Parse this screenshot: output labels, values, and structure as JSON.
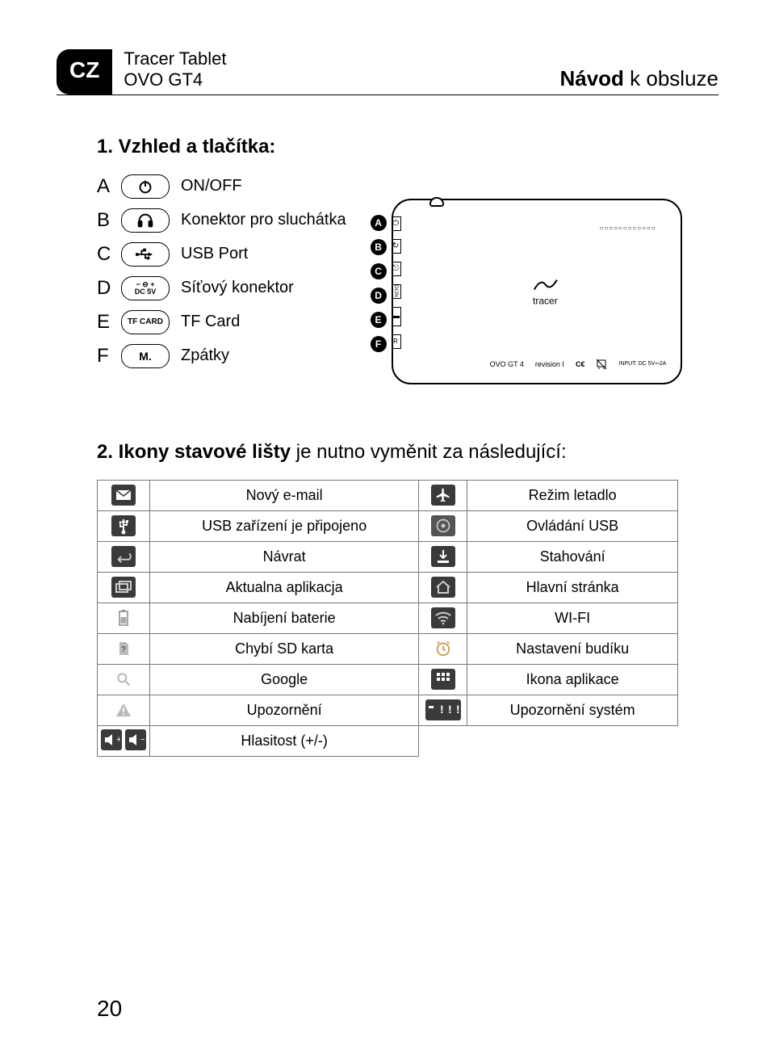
{
  "header": {
    "lang_badge": "CZ",
    "product_line1": "Tracer Tablet",
    "product_line2": "OVO GT4",
    "title_bold": "Návod",
    "title_rest": " k obsluze"
  },
  "section1": {
    "heading": "1. Vzhled a tlačítka:",
    "legend": [
      {
        "letter": "A",
        "icon": "power",
        "label": "ON/OFF"
      },
      {
        "letter": "B",
        "icon": "headphone",
        "label": "Konektor pro sluchátka"
      },
      {
        "letter": "C",
        "icon": "usb",
        "label": "USB Port"
      },
      {
        "letter": "D",
        "icon": "dc5v",
        "label": "Síťový konektor"
      },
      {
        "letter": "E",
        "icon": "tfcard",
        "label": "TF Card"
      },
      {
        "letter": "F",
        "icon": "m",
        "label": "Zpátky"
      }
    ],
    "device": {
      "logo": "tracer",
      "model": "OVO GT 4",
      "revision": "revision I",
      "input": "INPUT: DC 5V⎓2A",
      "ce": "C€"
    }
  },
  "section2": {
    "heading_bold": "2. Ikony stavové lišty",
    "heading_rest": " je nutno vyměnit za následující:",
    "rows": [
      {
        "liconName": "mail-icon",
        "ltext": "Nový e-mail",
        "riconName": "airplane-icon",
        "rtext": "Režim letadlo"
      },
      {
        "liconName": "usb-icon",
        "ltext": "USB zařízení je připojeno",
        "riconName": "usb-ctrl-icon",
        "rtext": "Ovládání USB"
      },
      {
        "liconName": "back-icon",
        "ltext": "Návrat",
        "riconName": "download-icon",
        "rtext": "Stahování"
      },
      {
        "liconName": "recent-icon",
        "ltext": "Aktualna aplikacja",
        "riconName": "home-icon",
        "rtext": "Hlavní stránka"
      },
      {
        "liconName": "battery-icon",
        "ltext": "Nabíjení baterie",
        "riconName": "wifi-icon",
        "rtext": "WI-FI"
      },
      {
        "liconName": "sdmissing-icon",
        "ltext": "Chybí SD karta",
        "riconName": "alarm-icon",
        "rtext": "Nastavení budíku"
      },
      {
        "liconName": "search-icon",
        "ltext": "Google",
        "riconName": "apps-icon",
        "rtext": "Ikona aplikace"
      },
      {
        "liconName": "warning-icon",
        "ltext": "Upozornění",
        "riconName": "sysnotif-icon",
        "rtext": "Upozornění systém"
      },
      {
        "liconName": "volume-icon",
        "ltext": "Hlasitost (+/-)",
        "riconName": "",
        "rtext": ""
      }
    ]
  },
  "page_number": "20",
  "colors": {
    "text": "#000000",
    "bg": "#ffffff",
    "icon_dark_bg": "#3a3a3a",
    "border": "#777777"
  }
}
